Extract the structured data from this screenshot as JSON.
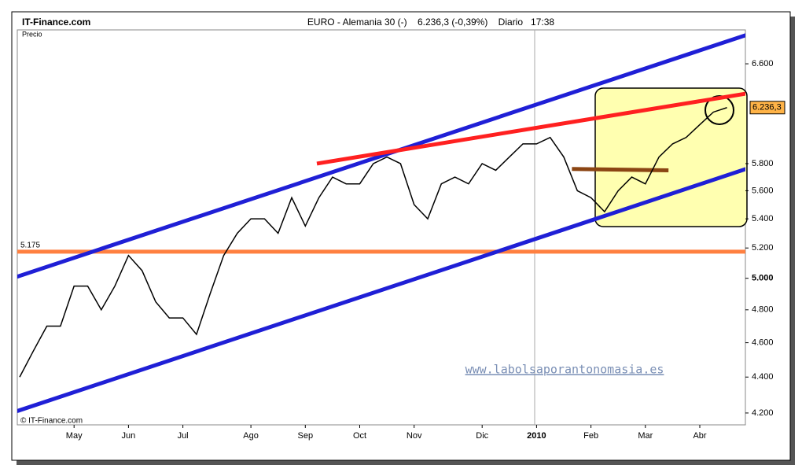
{
  "chart_data": {
    "type": "line",
    "source": "IT-Finance.com",
    "title": "EURO - Alemania 30 (-)    6.236,3 (-0,39%)    Diario   17:38",
    "y_axis_label": "Precio",
    "copyright": "© IT-Finance.com",
    "watermark": "www.labolsaporantonomasia.es",
    "categories": [
      null,
      null,
      null,
      null,
      "May",
      null,
      null,
      null,
      "Jun",
      null,
      null,
      null,
      "Jul",
      null,
      null,
      null,
      null,
      "Ago",
      null,
      null,
      null,
      "Sep",
      null,
      null,
      null,
      "Oct",
      null,
      null,
      null,
      "Nov",
      null,
      null,
      null,
      null,
      "Dic",
      null,
      null,
      null,
      "2010",
      null,
      null,
      null,
      "Feb",
      null,
      null,
      null,
      "Mar",
      null,
      null,
      null,
      "Abr",
      null,
      null
    ],
    "series": [
      {
        "color": "#000000",
        "values": [
          4400,
          4550,
          4700,
          4700,
          4950,
          4950,
          4800,
          4950,
          5150,
          5050,
          4850,
          4750,
          4750,
          4650,
          4900,
          5150,
          5300,
          5400,
          5400,
          5300,
          5550,
          5350,
          5550,
          5700,
          5650,
          5650,
          5800,
          5850,
          5800,
          5500,
          5400,
          5650,
          5700,
          5650,
          5800,
          5750,
          5850,
          5950,
          5950,
          6000,
          5850,
          5600,
          5550,
          5450,
          5600,
          5700,
          5650,
          5850,
          5950,
          6000,
          6100,
          6200,
          6236.3
        ]
      }
    ],
    "ylim": [
      4136,
      6896
    ],
    "log_scale": true,
    "yticks": [
      {
        "value": 4200,
        "label": "4.200"
      },
      {
        "value": 4400,
        "label": "4.400"
      },
      {
        "value": 4600,
        "label": "4.600"
      },
      {
        "value": 4800,
        "label": "4.800"
      },
      {
        "value": 5000,
        "label": "5.000"
      },
      {
        "value": 5200,
        "label": "5.200"
      },
      {
        "value": 5400,
        "label": "5.400"
      },
      {
        "value": 5600,
        "label": "5.600"
      },
      {
        "value": 5800,
        "label": "5.800"
      },
      {
        "value": 6600,
        "label": "6.600"
      }
    ],
    "last_price_label": "6.236,3",
    "lines": [
      {
        "color": "#1f1fd6",
        "x": [
          -0.2,
          53.4
        ],
        "values": [
          5010,
          6850
        ]
      },
      {
        "color": "#1f1fd6",
        "x": [
          -0.2,
          53.4
        ],
        "values": [
          4210,
          5760
        ]
      },
      {
        "color": "#ff2020",
        "x": [
          21.85,
          53.4
        ],
        "values": [
          5800,
          6350
        ]
      },
      {
        "color": "#8b4513",
        "x": [
          40.6,
          47.7
        ],
        "values": [
          5760,
          5750
        ]
      }
    ],
    "hlines": [
      {
        "value": 5175,
        "label": "5.175",
        "color": "#ff8040"
      }
    ]
  }
}
